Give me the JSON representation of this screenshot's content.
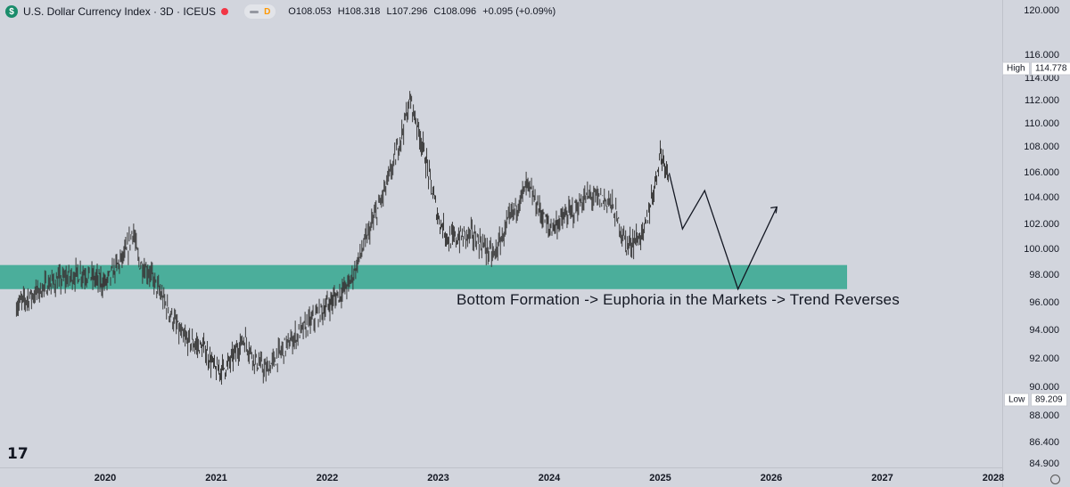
{
  "legend": {
    "symbol_icon_glyph": "$",
    "title": "U.S. Dollar Currency Index · 3D · ICEUS",
    "interval_badge": "D",
    "open": "O108.053",
    "high": "H108.318",
    "low": "L107.296",
    "close": "C108.096",
    "change": "+0.095 (+0.09%)"
  },
  "badges": {
    "high_label": "High",
    "high_value": "114.778",
    "low_label": "Low",
    "low_value": "89.209"
  },
  "annotation": "Bottom Formation -> Euphoria in the Markets -> Trend Reverses",
  "colors": {
    "zone": "#4bae9b",
    "candles": "#3a3a3a",
    "background": "#d2d5dd",
    "live_dot": "#f23645"
  },
  "chart_data": {
    "type": "bar",
    "price_ticks": [
      "120.000",
      "116.000",
      "114.000",
      "112.000",
      "110.000",
      "108.000",
      "106.000",
      "104.000",
      "102.000",
      "100.000",
      "98.000",
      "96.000",
      "94.000",
      "92.000",
      "90.000",
      "88.000",
      "86.400",
      "84.900"
    ],
    "year_ticks": [
      "2020",
      "2021",
      "2022",
      "2023",
      "2024",
      "2025",
      "2026",
      "2027",
      "2028"
    ],
    "zone": {
      "from": 97.5,
      "to": 99.7
    },
    "price_path": [
      {
        "t": 2019.2,
        "v": 96
      },
      {
        "t": 2019.5,
        "v": 98
      },
      {
        "t": 2019.8,
        "v": 99
      },
      {
        "t": 2020.0,
        "v": 98
      },
      {
        "t": 2020.2,
        "v": 101
      },
      {
        "t": 2020.25,
        "v": 103
      },
      {
        "t": 2020.3,
        "v": 100
      },
      {
        "t": 2020.4,
        "v": 99
      },
      {
        "t": 2020.5,
        "v": 97
      },
      {
        "t": 2020.7,
        "v": 93
      },
      {
        "t": 2020.9,
        "v": 92
      },
      {
        "t": 2021.0,
        "v": 90
      },
      {
        "t": 2021.1,
        "v": 90.5
      },
      {
        "t": 2021.25,
        "v": 93
      },
      {
        "t": 2021.35,
        "v": 91
      },
      {
        "t": 2021.45,
        "v": 90
      },
      {
        "t": 2021.6,
        "v": 92
      },
      {
        "t": 2021.8,
        "v": 94
      },
      {
        "t": 2022.0,
        "v": 96
      },
      {
        "t": 2022.2,
        "v": 98
      },
      {
        "t": 2022.35,
        "v": 102
      },
      {
        "t": 2022.5,
        "v": 106
      },
      {
        "t": 2022.6,
        "v": 109
      },
      {
        "t": 2022.75,
        "v": 114.8
      },
      {
        "t": 2022.85,
        "v": 111
      },
      {
        "t": 2023.0,
        "v": 104
      },
      {
        "t": 2023.1,
        "v": 102
      },
      {
        "t": 2023.3,
        "v": 102.5
      },
      {
        "t": 2023.5,
        "v": 100.5
      },
      {
        "t": 2023.65,
        "v": 104
      },
      {
        "t": 2023.8,
        "v": 107
      },
      {
        "t": 2024.0,
        "v": 103
      },
      {
        "t": 2024.2,
        "v": 104.5
      },
      {
        "t": 2024.35,
        "v": 106
      },
      {
        "t": 2024.55,
        "v": 105.5
      },
      {
        "t": 2024.7,
        "v": 101.5
      },
      {
        "t": 2024.85,
        "v": 102.5
      },
      {
        "t": 2024.95,
        "v": 107
      },
      {
        "t": 2025.0,
        "v": 110
      },
      {
        "t": 2025.08,
        "v": 108.1
      }
    ],
    "projection": [
      {
        "t": 2025.08,
        "v": 108.1
      },
      {
        "t": 2025.2,
        "v": 103
      },
      {
        "t": 2025.4,
        "v": 106.5
      },
      {
        "t": 2025.7,
        "v": 97.5
      },
      {
        "t": 2026.05,
        "v": 105
      }
    ]
  }
}
